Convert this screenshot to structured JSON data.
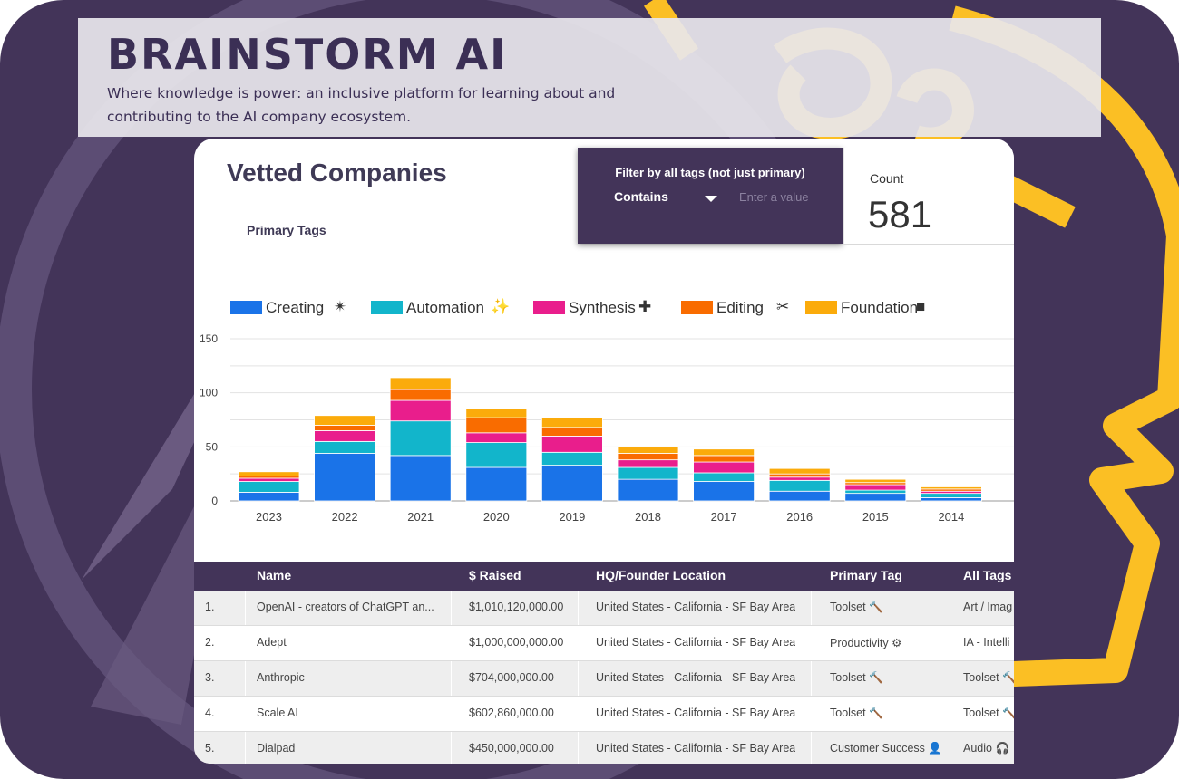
{
  "brand": {
    "title": "BRAINSTORM AI",
    "tagline_line1": "Where knowledge is power: an inclusive platform for learning about and",
    "tagline_line2": "contributing to the AI company ecosystem."
  },
  "dashboard": {
    "title": "Vetted Companies",
    "primary_tags_label": "Primary Tags",
    "filter": {
      "label": "Filter by all tags (not just primary)",
      "operator": "Contains",
      "placeholder": "Enter a value"
    },
    "count": {
      "label": "Count",
      "value": "581"
    }
  },
  "colors": {
    "background": "#433459",
    "accent": "#fbbf24",
    "creating": "#1a73e8",
    "automation": "#12b5cb",
    "synthesis": "#e91e8c",
    "editing": "#f96c00",
    "foundation": "#fbab0b"
  },
  "chart_data": {
    "type": "bar",
    "stacked": true,
    "categories": [
      "2023",
      "2022",
      "2021",
      "2020",
      "2019",
      "2018",
      "2017",
      "2016",
      "2015",
      "2014"
    ],
    "series": [
      {
        "name": "Creating",
        "symbol": "✴",
        "color": "#1a73e8",
        "values": [
          8,
          44,
          42,
          31,
          33,
          20,
          18,
          9,
          7,
          3
        ]
      },
      {
        "name": "Automation",
        "symbol": "✨",
        "color": "#12b5cb",
        "values": [
          10,
          11,
          32,
          23,
          12,
          11,
          8,
          10,
          3,
          4
        ]
      },
      {
        "name": "Synthesis",
        "symbol": "✚",
        "color": "#e91e8c",
        "values": [
          3,
          10,
          19,
          9,
          15,
          7,
          10,
          3,
          5,
          2
        ]
      },
      {
        "name": "Editing",
        "symbol": "✂",
        "color": "#f96c00",
        "values": [
          2,
          5,
          10,
          14,
          8,
          6,
          6,
          3,
          2,
          2
        ]
      },
      {
        "name": "Foundation",
        "symbol": "■",
        "color": "#fbab0b",
        "values": [
          4,
          9,
          11,
          8,
          9,
          6,
          6,
          5,
          3,
          2
        ]
      }
    ],
    "ylim": [
      0,
      150
    ],
    "yticks": [
      "150",
      "100",
      "50",
      "0"
    ],
    "grid": true,
    "legend": "top-left"
  },
  "table": {
    "headers": [
      "Name",
      "$ Raised",
      "HQ/Founder Location",
      "Primary Tag",
      "All Tags"
    ],
    "rows": [
      {
        "num": "1.",
        "name": "OpenAI - creators of ChatGPT an...",
        "raised": "$1,010,120,000.00",
        "location": "United States - California - SF Bay Area",
        "primary": "Toolset 🔨",
        "all": "Art / Imag"
      },
      {
        "num": "2.",
        "name": "Adept",
        "raised": "$1,000,000,000.00",
        "location": "United States - California - SF Bay Area",
        "primary": "Productivity ⚙",
        "all": "IA - Intelli"
      },
      {
        "num": "3.",
        "name": "Anthropic",
        "raised": "$704,000,000.00",
        "location": "United States - California - SF Bay Area",
        "primary": "Toolset 🔨",
        "all": "Toolset 🔨"
      },
      {
        "num": "4.",
        "name": "Scale AI",
        "raised": "$602,860,000.00",
        "location": "United States - California - SF Bay Area",
        "primary": "Toolset 🔨",
        "all": "Toolset 🔨"
      },
      {
        "num": "5.",
        "name": "Dialpad",
        "raised": "$450,000,000.00",
        "location": "United States - California - SF Bay Area",
        "primary": "Customer Success 👤",
        "all": "Audio 🎧"
      }
    ]
  }
}
